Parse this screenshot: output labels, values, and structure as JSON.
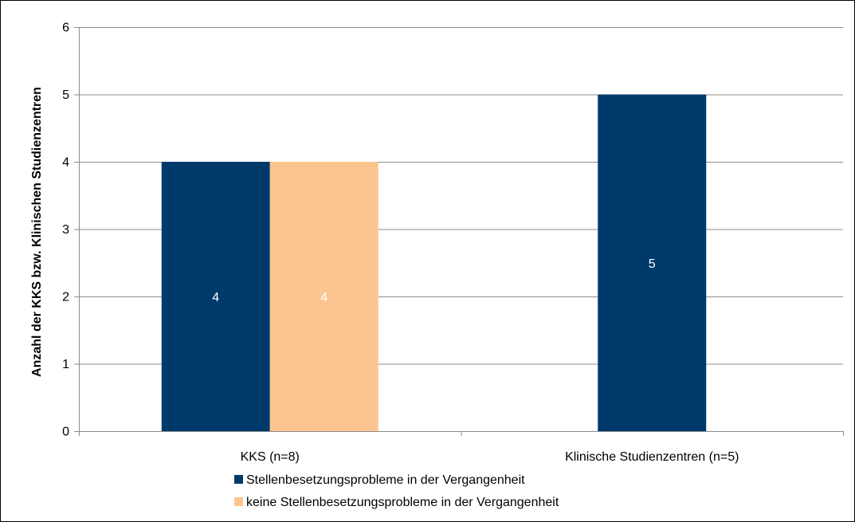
{
  "chart_data": {
    "type": "bar",
    "title": "",
    "xlabel": "",
    "ylabel": "Anzahl der KKS bzw. Klinischen Studienzentren",
    "ylim": [
      0,
      6
    ],
    "yticks": [
      "0",
      "1",
      "2",
      "3",
      "4",
      "5",
      "6"
    ],
    "grid": true,
    "legend_position": "bottom",
    "categories": [
      "KKS (n=8)",
      "Klinische Studienzentren (n=5)"
    ],
    "series": [
      {
        "name": "Stellenbesetzungsprobleme in der Vergangenheit",
        "color": "#003A6B",
        "values": [
          4,
          5
        ]
      },
      {
        "name": "keine Stellenbesetzungsprobleme in der Vergangenheit",
        "color": "#FCC58F",
        "values": [
          4,
          null
        ]
      }
    ]
  }
}
